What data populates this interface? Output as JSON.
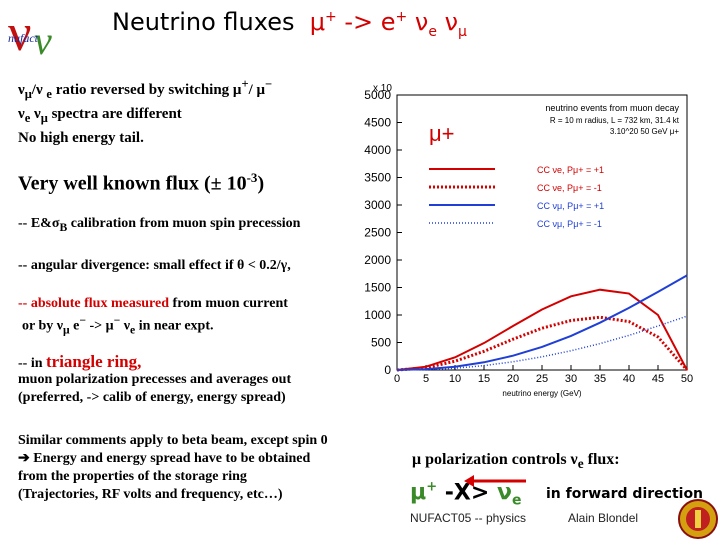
{
  "logo": {
    "text": "nufact",
    "symbol": "ν"
  },
  "title": {
    "main": "Neutrino fluxes",
    "reaction": "μ+ -> e+ νe νμ"
  },
  "bullets": [
    "νμ/νe ratio reversed by switching μ+/ μ−",
    "νe νμ spectra are different",
    "No high energy tail."
  ],
  "headline": "Very well known flux (± 10-3)",
  "items": {
    "calib": "-- E&σB calibration from muon spin precession",
    "angular": "-- angular divergence: small effect if θ < 0.2/γ,",
    "absolute_1": "-- absolute flux measured from muon current",
    "absolute_2": "or by νμ e− -> μ− νe in near expt.",
    "ring_prefix": "-- in",
    "ring_word": "triangle ring,",
    "ring_2": "muon polarization precesses and averages out",
    "ring_3": "(preferred, -> calib of energy, energy spread)"
  },
  "similar": [
    "Similar comments apply to beta beam, except spin 0",
    "➔ Energy and energy spread have to be obtained",
    "from the properties of the storage ring",
    "(Trajectories, RF volts and frequency, etc…)"
  ],
  "polarization": "μ polarization controls νe flux:",
  "mu_plus": "μ+",
  "arrow_text": "-X>",
  "nu_e": "νe",
  "forward": "in forward direction",
  "footer": {
    "left": "NUFACT05 -- physics",
    "right": "Alain Blondel"
  },
  "colors": {
    "red": "#d40000",
    "blue": "#1f3fd6"
  },
  "chart_data": {
    "type": "line",
    "multiplier": "x 10",
    "title": "neutrino events from muon decay",
    "subtitle_lines": [
      "R = 10 m radius, L = 732 km, 31.4 kt",
      "3.10^20 50 GeV μ+"
    ],
    "badge": "μ+",
    "xlabel": "neutrino energy (GeV)",
    "xlim": [
      0,
      50
    ],
    "ylim": [
      0,
      5000
    ],
    "x_ticks": [
      0,
      5,
      10,
      15,
      20,
      25,
      30,
      35,
      40,
      45,
      50
    ],
    "y_ticks": [
      0,
      500,
      1000,
      1500,
      2000,
      2500,
      3000,
      3500,
      4000,
      4500,
      5000
    ],
    "x": [
      0,
      5,
      10,
      15,
      20,
      25,
      30,
      35,
      40,
      45,
      50
    ],
    "legend_position": "top-right",
    "series": [
      {
        "name": "CC νe, Pμ+ = +1",
        "color": "#d40000",
        "style": "solid",
        "values": [
          0,
          60,
          230,
          490,
          800,
          1100,
          1340,
          1460,
          1390,
          1000,
          0
        ]
      },
      {
        "name": "CC νe, Pμ+ = -1",
        "color": "#d40000",
        "style": "dotted",
        "values": [
          0,
          40,
          160,
          340,
          560,
          760,
          900,
          960,
          880,
          600,
          0
        ]
      },
      {
        "name": "CC νμ, Pμ+ = +1",
        "color": "#1f3fd6",
        "style": "solid",
        "values": [
          0,
          15,
          60,
          140,
          260,
          420,
          620,
          860,
          1130,
          1420,
          1720
        ]
      },
      {
        "name": "CC νμ, Pμ+ = -1",
        "color": "#1f3fd6",
        "style": "dotted",
        "values": [
          0,
          8,
          32,
          80,
          150,
          240,
          350,
          480,
          630,
          800,
          980
        ]
      }
    ],
    "legend_lines": [
      {
        "color": "#d40000",
        "dash": "",
        "width": 2
      },
      {
        "color": "#d40000",
        "dash": "2,2",
        "width": 3
      },
      {
        "color": "#1f3fd6",
        "dash": "",
        "width": 2
      },
      {
        "color": "#1f3fd6",
        "dash": "1,2",
        "width": 1.5
      }
    ]
  }
}
